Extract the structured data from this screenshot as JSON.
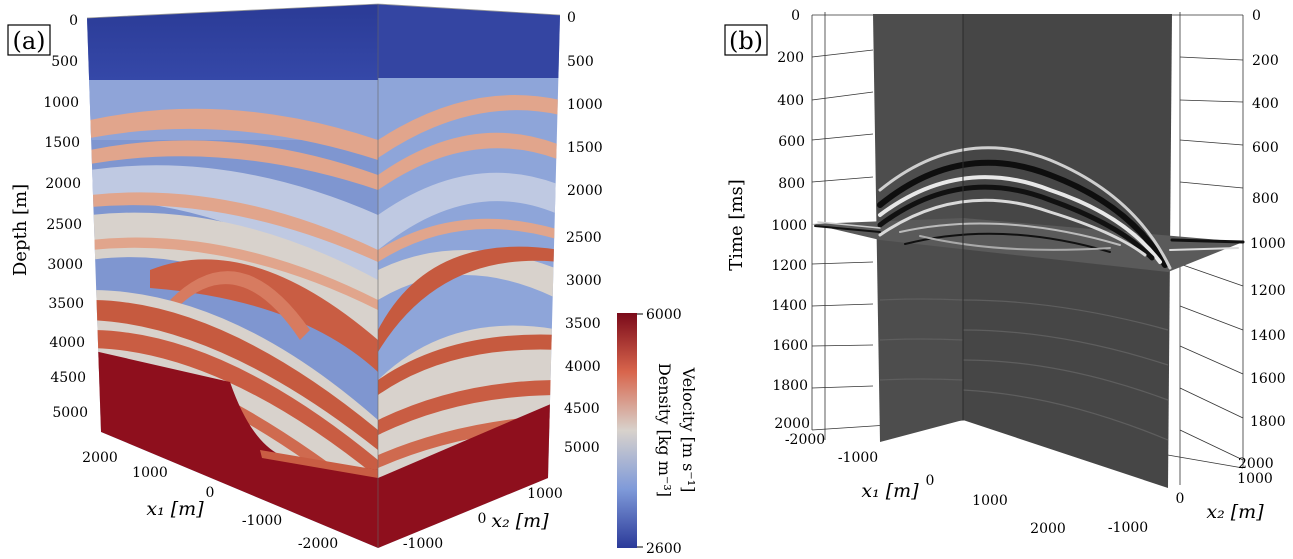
{
  "panel_a": {
    "label": "(a)",
    "left_axis_label": "Depth [m]",
    "left_ticks": [
      "0",
      "500",
      "1000",
      "1500",
      "2000",
      "2500",
      "3000",
      "3500",
      "4000",
      "4500",
      "5000"
    ],
    "right_ticks": [
      "0",
      "500",
      "1000",
      "1500",
      "2000",
      "2500",
      "3000",
      "3500",
      "4000",
      "4500",
      "5000"
    ],
    "x1_label": "x₁ [m]",
    "x1_ticks": [
      "2000",
      "1000",
      "0",
      "-1000",
      "-2000"
    ],
    "x2_label": "x₂ [m]",
    "x2_ticks": [
      "-1000",
      "0",
      "1000"
    ],
    "colorbar": {
      "label_line1": "Velocity [m s⁻¹]",
      "label_line2": "Density [kg m⁻³]",
      "max": "6000",
      "min": "2600",
      "color_high": "#7a0a1a",
      "color_mid": "#d8d2cc",
      "color_low": "#2b3a99"
    }
  },
  "panel_b": {
    "label": "(b)",
    "left_axis_label": "Time [ms]",
    "left_ticks": [
      "0",
      "200",
      "400",
      "600",
      "800",
      "1000",
      "1200",
      "1400",
      "1600",
      "1800",
      "2000"
    ],
    "right_ticks": [
      "0",
      "200",
      "400",
      "600",
      "800",
      "1000",
      "1200",
      "1400",
      "1600",
      "1800",
      "2000"
    ],
    "x1_label": "x₁ [m]",
    "x1_ticks": [
      "-2000",
      "-1000",
      "0",
      "1000",
      "2000"
    ],
    "x2_label": "x₂ [m]",
    "x2_ticks": [
      "-1000",
      "0",
      "1000"
    ]
  }
}
